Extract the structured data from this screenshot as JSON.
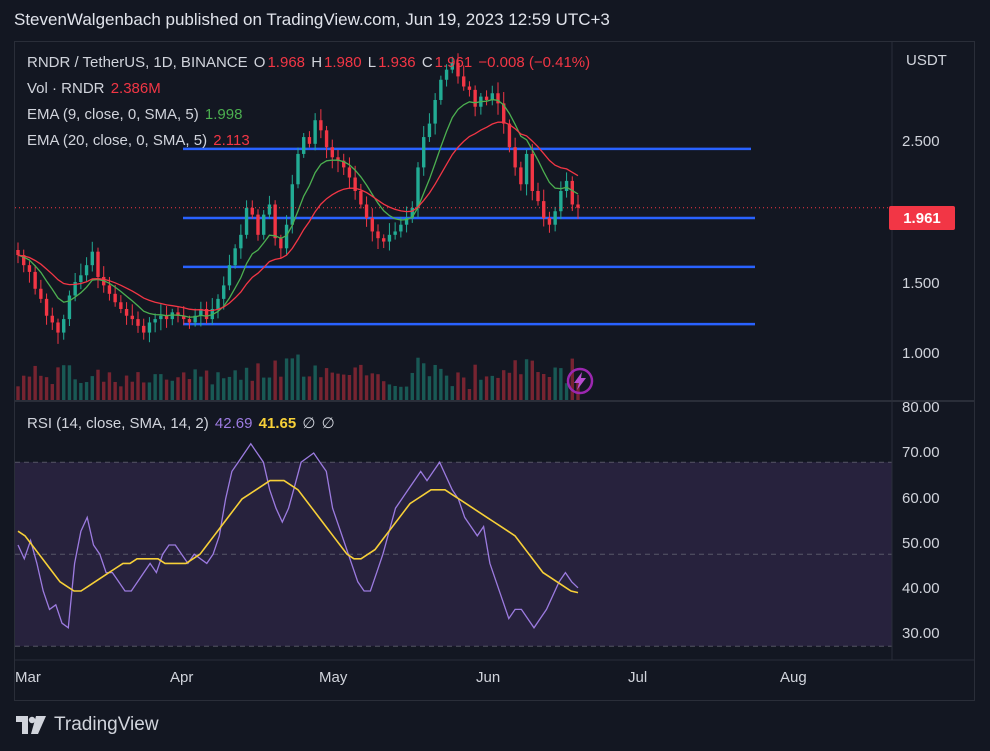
{
  "header": {
    "published_line": "StevenWalgenbach published on TradingView.com, Jun 19, 2023 12:59 UTC+3"
  },
  "legend": {
    "symbol": "RNDR / TetherUS, 1D, BINANCE",
    "o_label": "O",
    "o_value": "1.968",
    "h_label": "H",
    "h_value": "1.980",
    "l_label": "L",
    "l_value": "1.936",
    "c_label": "C",
    "c_value": "1.961",
    "change": "−0.008 (−0.41%)",
    "vol_label": "Vol · RNDR",
    "vol_value": "2.386M",
    "ema9_label": "EMA (9, close, 0, SMA, 5)",
    "ema9_value": "1.998",
    "ema20_label": "EMA (20, close, 0, SMA, 5)",
    "ema20_value": "2.113"
  },
  "price_axis": {
    "currency": "USDT",
    "ticks": [
      "2.500",
      "1.500",
      "1.000"
    ],
    "last_price": "1.961"
  },
  "rsi_panel": {
    "label": "RSI (14, close, SMA, 14, 2)",
    "rsi_value": "42.69",
    "sma_value": "41.65",
    "extra1": "∅",
    "extra2": "∅",
    "ticks": [
      "80.00",
      "70.00",
      "60.00",
      "50.00",
      "40.00",
      "30.00"
    ]
  },
  "time_axis": [
    "Mar",
    "Apr",
    "May",
    "Jun",
    "Jul",
    "Aug"
  ],
  "footer": {
    "brand": "TradingView"
  },
  "colors": {
    "up": "#22ab94",
    "down": "#f23645",
    "ema9": "#4caf50",
    "ema20": "#f23645",
    "level": "#2962ff",
    "rsi": "#9c7be0",
    "rsi_sma": "#f7d038",
    "rsi_band": "#2a2440"
  },
  "chart_data": [
    {
      "type": "candlestick",
      "title": "RNDR / TetherUS, 1D, BINANCE",
      "x_range": [
        "2023-03-01",
        "2023-08-31"
      ],
      "ylim": [
        0.82,
        2.95
      ],
      "close": [
        1.68,
        1.62,
        1.58,
        1.48,
        1.42,
        1.32,
        1.28,
        1.22,
        1.3,
        1.44,
        1.52,
        1.56,
        1.62,
        1.7,
        1.55,
        1.5,
        1.45,
        1.4,
        1.36,
        1.32,
        1.3,
        1.26,
        1.22,
        1.28,
        1.3,
        1.32,
        1.3,
        1.34,
        1.32,
        1.3,
        1.28,
        1.32,
        1.36,
        1.3,
        1.36,
        1.42,
        1.5,
        1.62,
        1.72,
        1.8,
        1.96,
        1.92,
        1.8,
        1.92,
        1.98,
        1.78,
        1.72,
        1.86,
        2.1,
        2.28,
        2.38,
        2.34,
        2.48,
        2.42,
        2.32,
        2.26,
        2.24,
        2.2,
        2.14,
        2.06,
        1.98,
        1.9,
        1.82,
        1.78,
        1.76,
        1.8,
        1.82,
        1.86,
        1.9,
        1.96,
        2.2,
        2.38,
        2.46,
        2.6,
        2.72,
        2.78,
        2.82,
        2.74,
        2.68,
        2.66,
        2.56,
        2.62,
        2.6,
        2.64,
        2.58,
        2.46,
        2.32,
        2.2,
        2.1,
        2.28,
        2.06,
        2.0,
        1.9,
        1.86,
        1.94,
        2.06,
        2.12,
        1.98,
        1.961
      ],
      "ema9_last": 1.998,
      "ema20_last": 2.113,
      "horizontal_levels": [
        2.31,
        1.9,
        1.61,
        1.27
      ],
      "last_price": 1.961
    },
    {
      "type": "line",
      "title": "RSI (14, close, SMA, 14, 2)",
      "ylim": [
        27,
        82
      ],
      "bands": [
        30,
        50,
        70
      ],
      "series": [
        {
          "name": "RSI",
          "values": [
            52,
            49,
            53,
            48,
            42,
            38,
            39,
            35,
            34,
            48,
            55,
            58,
            52,
            50,
            46,
            46,
            44,
            42,
            42,
            44,
            46,
            48,
            46,
            50,
            52,
            52,
            50,
            48,
            50,
            49,
            48,
            50,
            54,
            62,
            68,
            70,
            72,
            74,
            72,
            70,
            64,
            60,
            57,
            60,
            65,
            70,
            71,
            72,
            70,
            68,
            60,
            56,
            52,
            48,
            44,
            42,
            42,
            46,
            50,
            55,
            60,
            62,
            64,
            66,
            68,
            66,
            68,
            70,
            67,
            64,
            62,
            58,
            56,
            54,
            56,
            48,
            44,
            40,
            36,
            38,
            38,
            36,
            34,
            36,
            38,
            41,
            44,
            46,
            44,
            42.69
          ]
        },
        {
          "name": "SMA",
          "values": [
            55,
            54,
            52,
            50,
            48,
            46,
            44,
            43,
            42,
            42,
            43,
            44,
            45,
            46,
            47,
            48,
            48,
            49,
            49,
            49,
            49,
            48,
            48,
            48,
            48,
            49,
            50,
            52,
            54,
            56,
            58,
            60,
            62,
            63,
            64,
            65,
            66,
            66,
            66,
            65,
            64,
            62,
            60,
            58,
            56,
            54,
            52,
            50,
            49,
            49,
            50,
            51,
            53,
            55,
            57,
            59,
            61,
            62,
            63,
            64,
            64,
            64,
            63,
            62,
            61,
            60,
            59,
            58,
            57,
            56,
            55,
            54,
            52,
            50,
            48,
            46,
            45,
            44,
            43,
            42,
            41.65
          ]
        }
      ]
    }
  ]
}
